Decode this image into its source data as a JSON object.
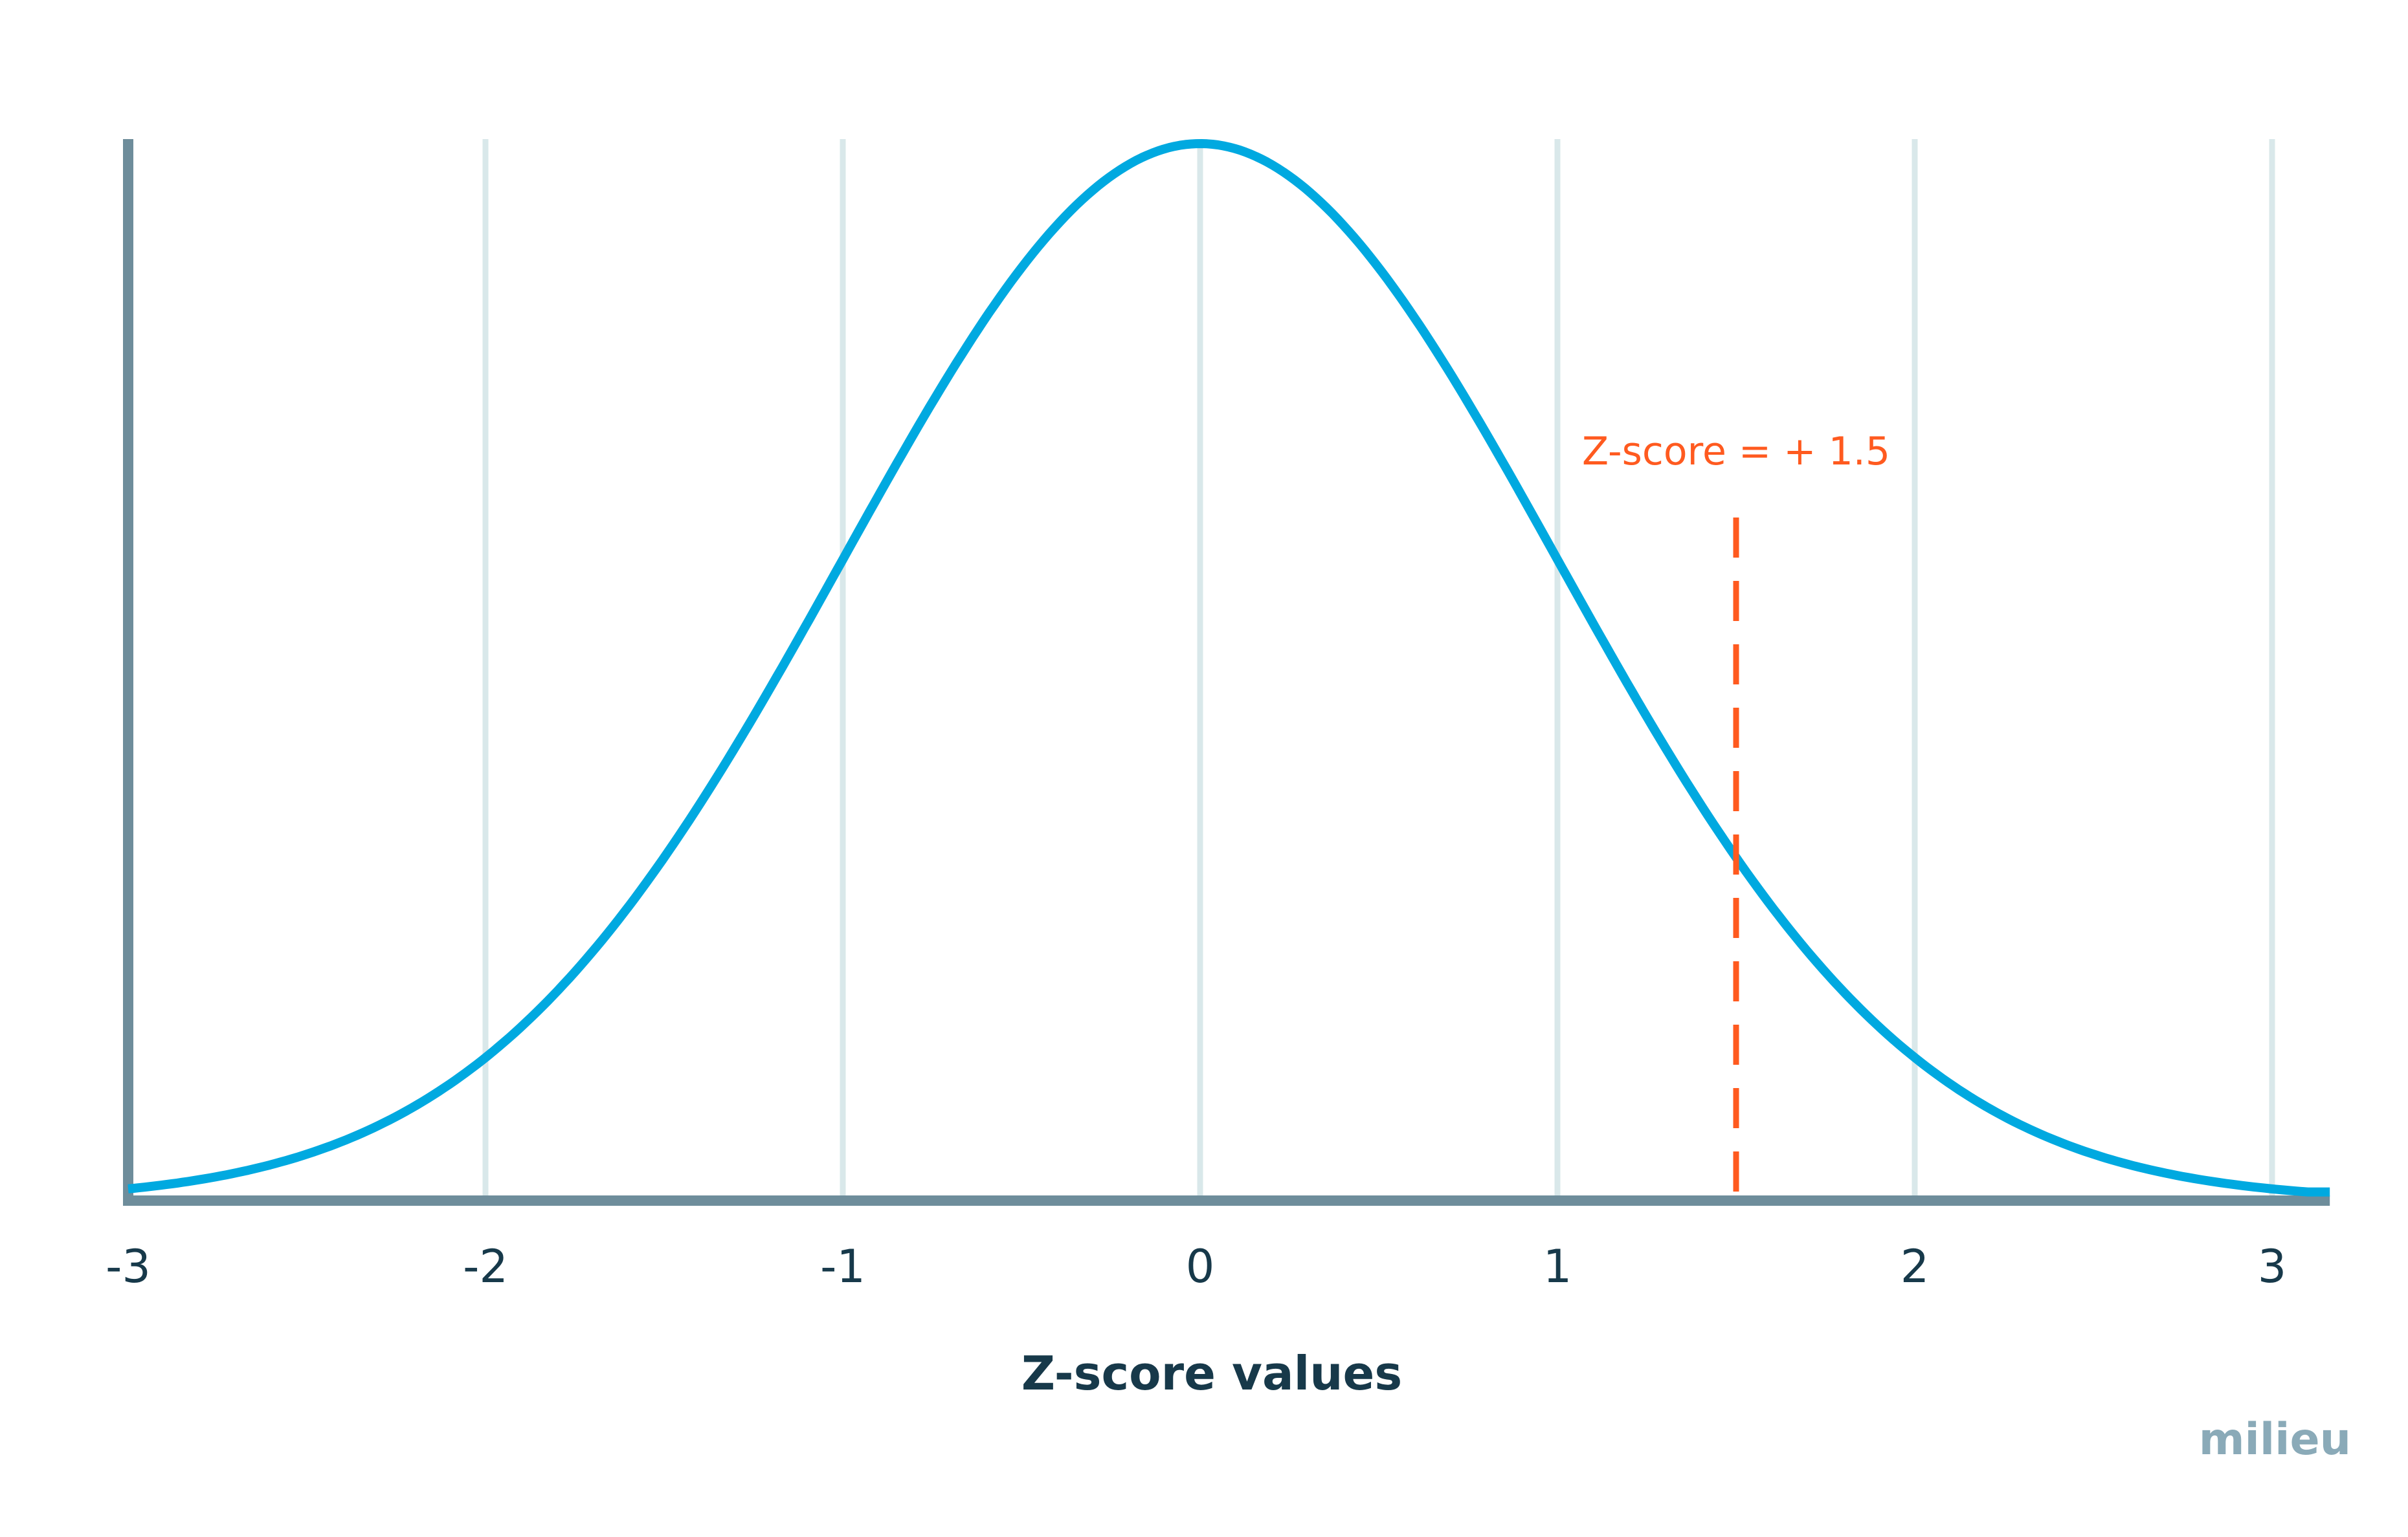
{
  "chart_data": {
    "type": "line",
    "title": "",
    "xlabel": "Z-score values",
    "ylabel": "",
    "xlim": [
      -3,
      3.1
    ],
    "x_ticks": [
      -3,
      -2,
      -1,
      0,
      1,
      2,
      3
    ],
    "x_tick_labels": [
      "-3",
      "-2",
      "-1",
      "0",
      "1",
      "2",
      "3"
    ],
    "grid": "vertical",
    "series": [
      {
        "distribution": "standard normal",
        "mean": 0,
        "sd": 1,
        "x_range": [
          -3,
          3.1
        ],
        "color": "#00a9e0"
      }
    ],
    "annotations": [
      {
        "type": "vline",
        "x": 1.5,
        "label": "Z-score = + 1.5",
        "style": "dashed",
        "color": "#ff5a1f"
      }
    ]
  },
  "branding": {
    "logo": "milieu",
    "logo_color": "#8aaab8"
  },
  "colors": {
    "curve": "#00a9e0",
    "annotation": "#ff5a1f",
    "axis": "#6e8d9b",
    "grid": "#d9e8ea",
    "text": "#17394a"
  }
}
